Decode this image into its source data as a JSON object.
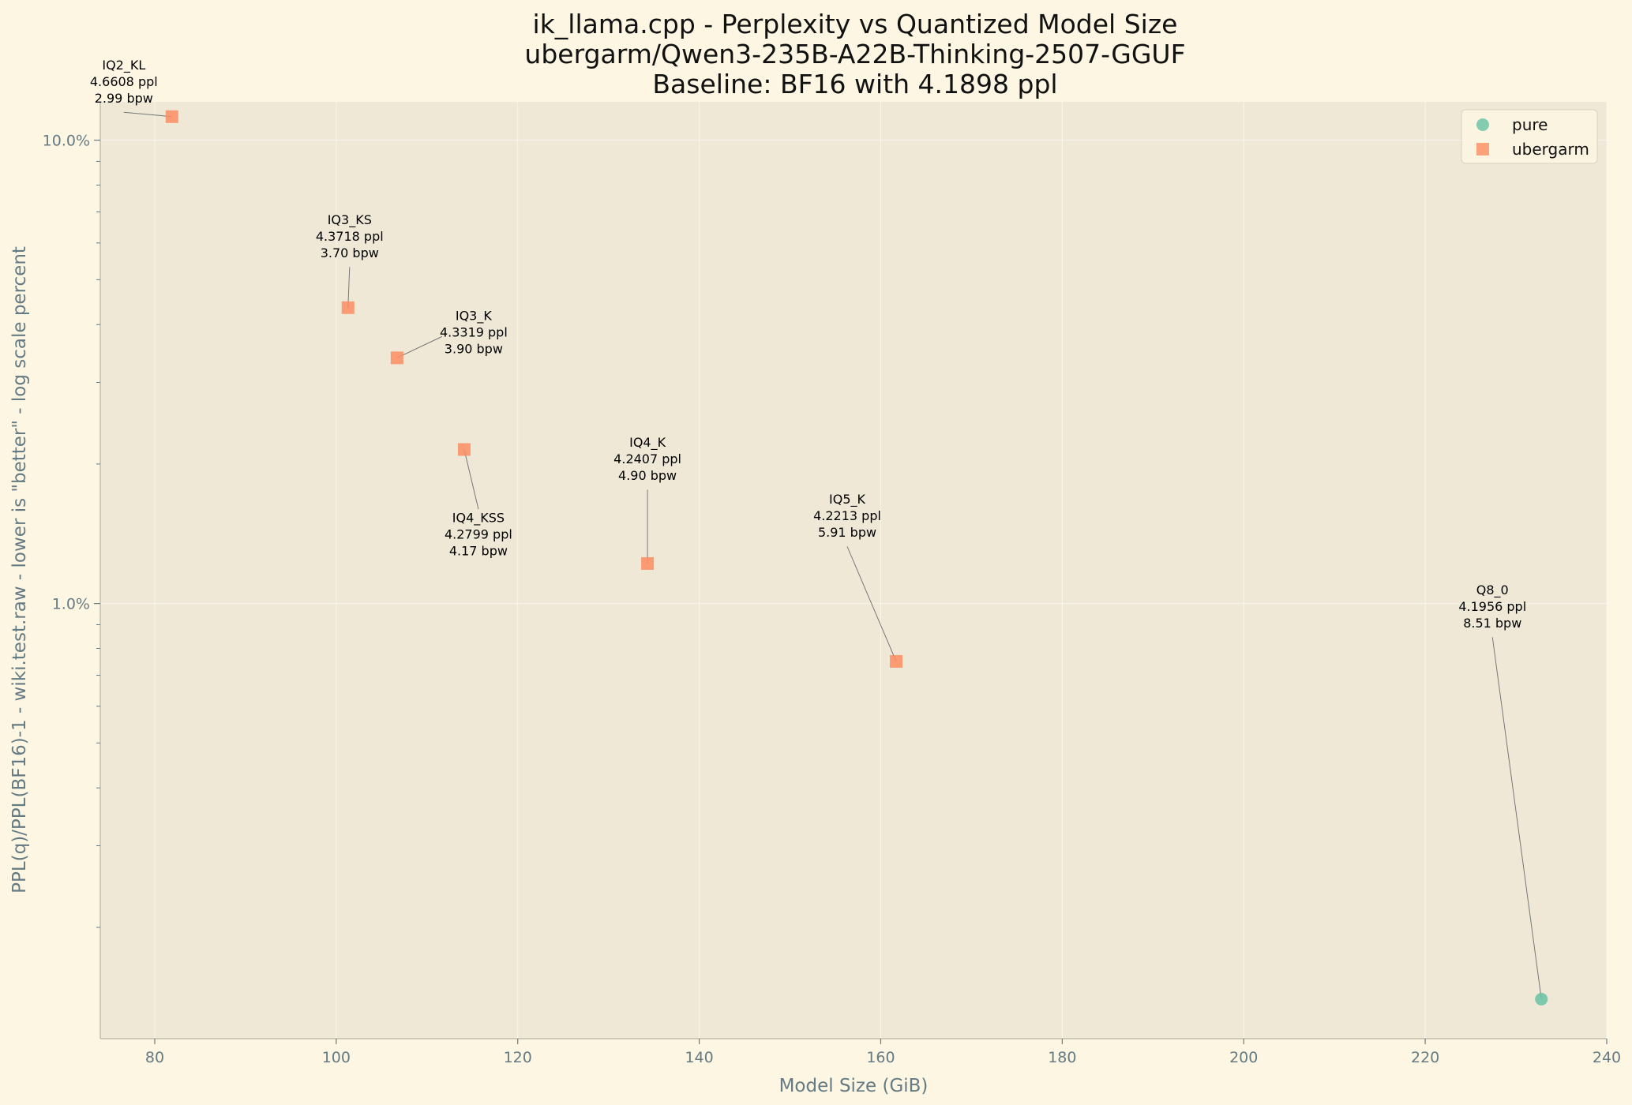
{
  "chart_data": {
    "type": "scatter",
    "title_lines": [
      "ik_llama.cpp - Perplexity vs Quantized Model Size",
      "ubergarm/Qwen3-235B-A22B-Thinking-2507-GGUF",
      "Baseline: BF16 with 4.1898 ppl"
    ],
    "xlabel": "Model Size (GiB)",
    "ylabel": "PPL(q)/PPL(BF16)-1 - wiki.test.raw - lower is \"better\" - log scale percent",
    "xlim": [
      74,
      240
    ],
    "ylim": [
      0.115,
      12.1
    ],
    "yscale": "log",
    "x_ticks": [
      80,
      100,
      120,
      140,
      160,
      180,
      200,
      220,
      240
    ],
    "y_ticks": [
      {
        "value": 1.0,
        "label": "1.0%"
      },
      {
        "value": 10.0,
        "label": "10.0%"
      }
    ],
    "grid": true,
    "legend_position": "top-right",
    "colors": {
      "pure": "#66c2a5",
      "ubergarm": "#fc8d62",
      "background": "#fdf6e3",
      "plot_background": "#efe8d6"
    },
    "series": [
      {
        "name": "pure",
        "marker": "circle",
        "color": "#66c2a5",
        "points": [
          {
            "x": 232.8,
            "y": 0.14,
            "label": [
              "Q8_0",
              "4.1956 ppl",
              "8.51 bpw"
            ]
          }
        ]
      },
      {
        "name": "ubergarm",
        "marker": "square",
        "color": "#fc8d62",
        "points": [
          {
            "x": 81.9,
            "y": 11.24,
            "label": [
              "IQ2_KL",
              "4.6608 ppl",
              "2.99 bpw"
            ]
          },
          {
            "x": 101.3,
            "y": 4.35,
            "label": [
              "IQ3_KS",
              "4.3718 ppl",
              "3.70 bpw"
            ]
          },
          {
            "x": 106.7,
            "y": 3.39,
            "label": [
              "IQ3_K",
              "4.3319 ppl",
              "3.90 bpw"
            ]
          },
          {
            "x": 114.1,
            "y": 2.15,
            "label": [
              "IQ4_KSS",
              "4.2799 ppl",
              "4.17 bpw"
            ]
          },
          {
            "x": 134.3,
            "y": 1.22,
            "label": [
              "IQ4_K",
              "4.2407 ppl",
              "4.90 bpw"
            ]
          },
          {
            "x": 161.7,
            "y": 0.75,
            "label": [
              "IQ5_K",
              "4.2213 ppl",
              "5.91 bpw"
            ]
          }
        ]
      }
    ]
  }
}
